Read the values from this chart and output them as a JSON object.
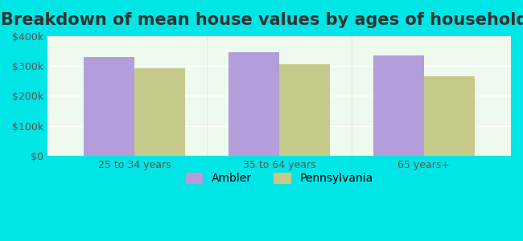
{
  "title": "Breakdown of mean house values by ages of householders",
  "categories": [
    "25 to 34 years",
    "35 to 64 years",
    "65 years+"
  ],
  "ambler_values": [
    330000,
    345000,
    335000
  ],
  "pennsylvania_values": [
    293000,
    307000,
    265000
  ],
  "ambler_color": "#b39ddb",
  "pennsylvania_color": "#c5c98a",
  "bar_width": 0.35,
  "ylim": [
    0,
    400000
  ],
  "yticks": [
    0,
    100000,
    200000,
    300000,
    400000
  ],
  "ytick_labels": [
    "$0",
    "$100k",
    "$200k",
    "$300k",
    "$400k"
  ],
  "background_color": "#00e5e5",
  "plot_bg_color_top": "#e8f5e8",
  "plot_bg_color_bottom": "#f0faf0",
  "title_fontsize": 15,
  "tick_fontsize": 9,
  "legend_fontsize": 10,
  "legend_labels": [
    "Ambler",
    "Pennsylvania"
  ],
  "grid_color": "#ffffff",
  "title_color": "#333333"
}
